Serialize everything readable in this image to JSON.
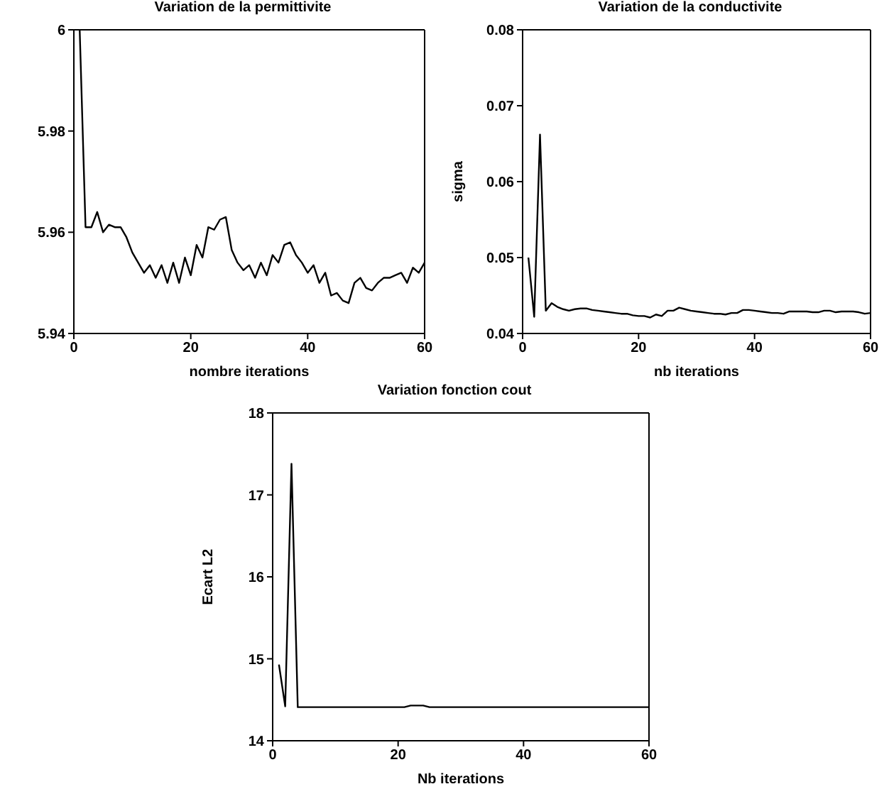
{
  "chart_data": [
    {
      "type": "line",
      "title": "Variation de la permittivite",
      "xlabel": "nombre iterations",
      "x": [
        1,
        2,
        3,
        4,
        5,
        6,
        7,
        8,
        9,
        10,
        11,
        12,
        13,
        14,
        15,
        16,
        17,
        18,
        19,
        20,
        21,
        22,
        23,
        24,
        25,
        26,
        27,
        28,
        29,
        30,
        31,
        32,
        33,
        34,
        35,
        36,
        37,
        38,
        39,
        40,
        41,
        42,
        43,
        44,
        45,
        46,
        47,
        48,
        49,
        50,
        51,
        52,
        53,
        54,
        55,
        56,
        57,
        58,
        59,
        60
      ],
      "series": [
        {
          "color": "#000000",
          "values": [
            6.0,
            5.961,
            5.961,
            5.964,
            5.96,
            5.9615,
            5.961,
            5.961,
            5.959,
            5.956,
            5.954,
            5.952,
            5.9535,
            5.951,
            5.9535,
            5.95,
            5.954,
            5.95,
            5.955,
            5.9515,
            5.9575,
            5.955,
            5.961,
            5.9605,
            5.9625,
            5.963,
            5.9565,
            5.954,
            5.9525,
            5.9535,
            5.951,
            5.954,
            5.9515,
            5.9555,
            5.954,
            5.9575,
            5.958,
            5.9555,
            5.954,
            5.952,
            5.9535,
            5.95,
            5.952,
            5.9475,
            5.948,
            5.9465,
            5.946,
            5.95,
            5.951,
            5.949,
            5.9485,
            5.95,
            5.951,
            5.951,
            5.9515,
            5.952,
            5.95,
            5.953,
            5.952,
            5.954
          ]
        }
      ],
      "xlim": [
        0,
        60
      ],
      "xticks": [
        0,
        20,
        40,
        60
      ],
      "ylim": [
        5.94,
        6
      ],
      "yticks": [
        5.94,
        5.96,
        5.98,
        6
      ]
    },
    {
      "type": "line",
      "title": "Variation de la conductivite",
      "xlabel": "nb iterations",
      "ylabel": "sigma",
      "x": [
        1,
        2,
        3,
        4,
        5,
        6,
        7,
        8,
        9,
        10,
        11,
        12,
        13,
        14,
        15,
        16,
        17,
        18,
        19,
        20,
        21,
        22,
        23,
        24,
        25,
        26,
        27,
        28,
        29,
        30,
        31,
        32,
        33,
        34,
        35,
        36,
        37,
        38,
        39,
        40,
        41,
        42,
        43,
        44,
        45,
        46,
        47,
        48,
        49,
        50,
        51,
        52,
        53,
        54,
        55,
        56,
        57,
        58,
        59,
        60
      ],
      "series": [
        {
          "color": "#000000",
          "values": [
            0.05,
            0.0422,
            0.0662,
            0.043,
            0.044,
            0.0435,
            0.0432,
            0.043,
            0.0432,
            0.0433,
            0.0433,
            0.0431,
            0.043,
            0.0429,
            0.0428,
            0.0427,
            0.0426,
            0.0426,
            0.0424,
            0.0423,
            0.0423,
            0.0421,
            0.0425,
            0.0423,
            0.043,
            0.043,
            0.0434,
            0.0432,
            0.043,
            0.0429,
            0.0428,
            0.0427,
            0.0426,
            0.0426,
            0.0425,
            0.0427,
            0.0427,
            0.0431,
            0.0431,
            0.043,
            0.0429,
            0.0428,
            0.0427,
            0.0427,
            0.0426,
            0.0429,
            0.0429,
            0.0429,
            0.0429,
            0.0428,
            0.0428,
            0.043,
            0.043,
            0.0428,
            0.0429,
            0.0429,
            0.0429,
            0.0428,
            0.0426,
            0.0427
          ]
        }
      ],
      "xlim": [
        0,
        60
      ],
      "xticks": [
        0,
        20,
        40,
        60
      ],
      "ylim": [
        0.04,
        0.08
      ],
      "yticks": [
        0.04,
        0.05,
        0.06,
        0.07,
        0.08
      ]
    },
    {
      "type": "line",
      "title": "Variation fonction cout",
      "xlabel": "Nb iterations",
      "ylabel": "Ecart L2",
      "x": [
        1,
        2,
        3,
        4,
        5,
        6,
        7,
        8,
        9,
        10,
        11,
        12,
        13,
        14,
        15,
        16,
        17,
        18,
        19,
        20,
        21,
        22,
        23,
        24,
        25,
        26,
        27,
        28,
        29,
        30,
        31,
        32,
        33,
        34,
        35,
        36,
        37,
        38,
        39,
        40,
        41,
        42,
        43,
        44,
        45,
        46,
        47,
        48,
        49,
        50,
        51,
        52,
        53,
        54,
        55,
        56,
        57,
        58,
        59,
        60
      ],
      "series": [
        {
          "color": "#000000",
          "values": [
            14.93,
            14.42,
            17.38,
            14.41,
            14.41,
            14.41,
            14.41,
            14.41,
            14.41,
            14.41,
            14.41,
            14.41,
            14.41,
            14.41,
            14.41,
            14.41,
            14.41,
            14.41,
            14.41,
            14.41,
            14.41,
            14.43,
            14.43,
            14.43,
            14.41,
            14.41,
            14.41,
            14.41,
            14.41,
            14.41,
            14.41,
            14.41,
            14.41,
            14.41,
            14.41,
            14.41,
            14.41,
            14.41,
            14.41,
            14.41,
            14.41,
            14.41,
            14.41,
            14.41,
            14.41,
            14.41,
            14.41,
            14.41,
            14.41,
            14.41,
            14.41,
            14.41,
            14.41,
            14.41,
            14.41,
            14.41,
            14.41,
            14.41,
            14.41,
            14.41
          ]
        }
      ],
      "xlim": [
        0,
        60
      ],
      "xticks": [
        0,
        20,
        40,
        60
      ],
      "ylim": [
        14,
        18
      ],
      "yticks": [
        14,
        15,
        16,
        17,
        18
      ]
    }
  ]
}
